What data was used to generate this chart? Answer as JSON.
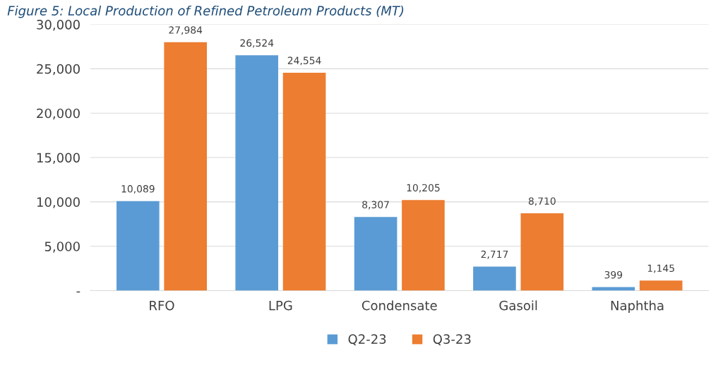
{
  "chart_data": {
    "type": "bar",
    "title": "Figure 5: Local Production of Refined Petroleum Products (MT)",
    "categories": [
      "RFO",
      "LPG",
      "Condensate",
      "Gasoil",
      "Naphtha"
    ],
    "series": [
      {
        "name": "Q2-23",
        "color": "#5b9bd5",
        "values": [
          10089,
          26524,
          8307,
          2717,
          399
        ],
        "value_labels": [
          "10,089",
          "26,524",
          "8,307",
          "2,717",
          "399"
        ]
      },
      {
        "name": "Q3-23",
        "color": "#ed7d31",
        "values": [
          27984,
          24554,
          10205,
          8710,
          1145
        ],
        "value_labels": [
          "27,984",
          "24,554",
          "10,205",
          "8,710",
          "1,145"
        ]
      }
    ],
    "ylim": [
      0,
      30000
    ],
    "yticks": [
      {
        "value": 0,
        "label": "-"
      },
      {
        "value": 5000,
        "label": "5,000"
      },
      {
        "value": 10000,
        "label": "10,000"
      },
      {
        "value": 15000,
        "label": "15,000"
      },
      {
        "value": 20000,
        "label": "20,000"
      },
      {
        "value": 25000,
        "label": "25,000"
      },
      {
        "value": 30000,
        "label": "30,000"
      }
    ],
    "grid": "y",
    "legend": "bottom"
  }
}
